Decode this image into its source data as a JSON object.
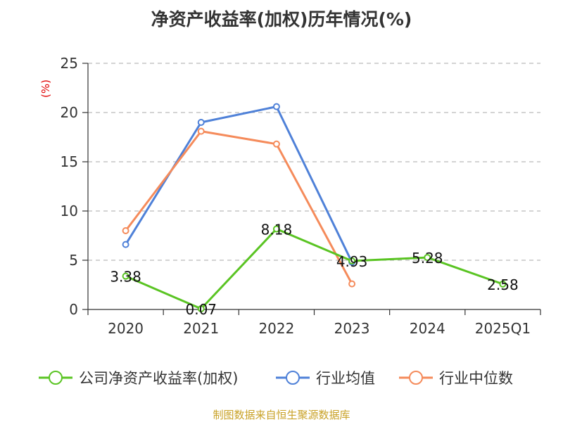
{
  "chart_data": {
    "type": "line",
    "title": "净资产收益率(加权)历年情况(%)",
    "ylabel": "(%)",
    "xlabel": "",
    "categories": [
      "2020",
      "2021",
      "2022",
      "2023",
      "2024",
      "2025Q1"
    ],
    "ylim": [
      0,
      25
    ],
    "yticks": [
      0,
      5,
      10,
      15,
      20,
      25
    ],
    "grid": true,
    "legend_position": "bottom",
    "series": [
      {
        "name": "公司净资产收益率(加权)",
        "color": "#5ac423",
        "values": [
          3.38,
          0.07,
          8.18,
          4.93,
          5.28,
          2.58
        ],
        "labels": [
          "3.38",
          "0.07",
          "8.18",
          "4.93",
          "5.28",
          "2.58"
        ],
        "show_labels": true
      },
      {
        "name": "行业均值",
        "color": "#4f81d8",
        "values": [
          6.6,
          19.0,
          20.6,
          4.8,
          null,
          null
        ],
        "show_labels": false
      },
      {
        "name": "行业中位数",
        "color": "#f58b5b",
        "values": [
          8.0,
          18.1,
          16.8,
          2.6,
          null,
          null
        ],
        "show_labels": false
      }
    ]
  },
  "source": "制图数据来自恒生聚源数据库"
}
